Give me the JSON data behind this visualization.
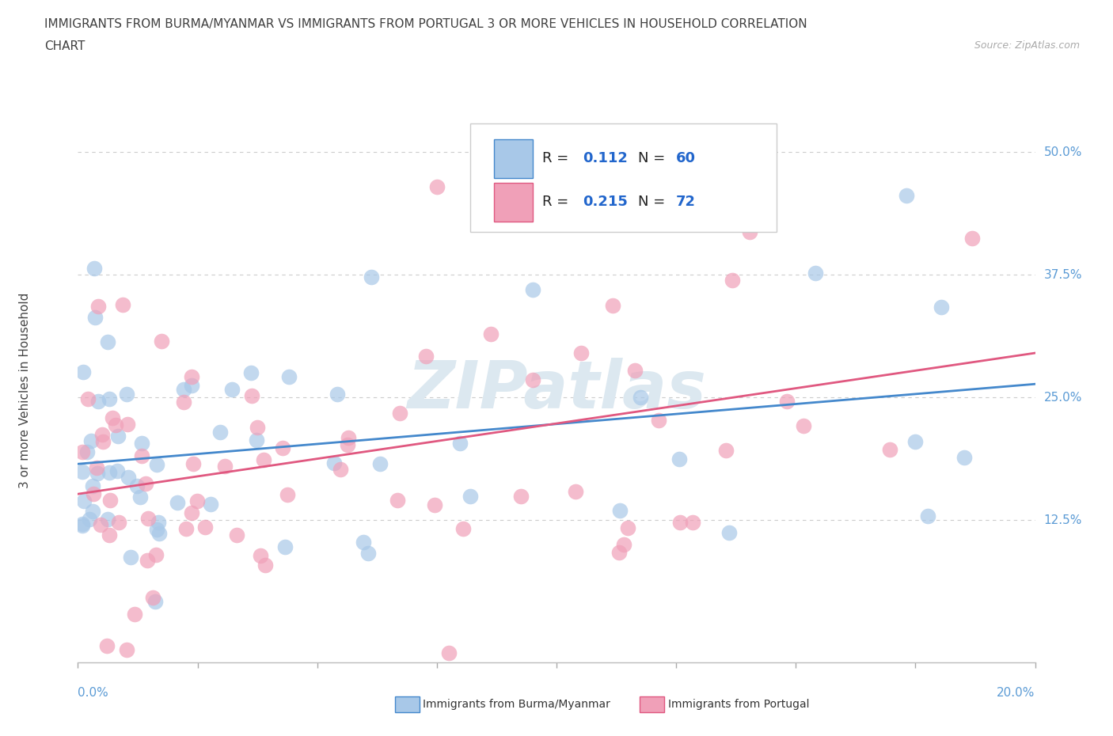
{
  "title_line1": "IMMIGRANTS FROM BURMA/MYANMAR VS IMMIGRANTS FROM PORTUGAL 3 OR MORE VEHICLES IN HOUSEHOLD CORRELATION",
  "title_line2": "CHART",
  "source": "Source: ZipAtlas.com",
  "ylabel": "3 or more Vehicles in Household",
  "yticks": [
    "12.5%",
    "25.0%",
    "37.5%",
    "50.0%"
  ],
  "ytick_vals": [
    0.125,
    0.25,
    0.375,
    0.5
  ],
  "xlim": [
    0.0,
    0.2
  ],
  "ylim": [
    -0.02,
    0.535
  ],
  "color_blue": "#a8c8e8",
  "color_pink": "#f0a0b8",
  "line_blue": "#4488cc",
  "line_pink": "#e05880",
  "R_blue": 0.112,
  "N_blue": 60,
  "R_pink": 0.215,
  "N_pink": 72,
  "legend_label_blue": "Immigrants from Burma/Myanmar",
  "legend_label_pink": "Immigrants from Portugal",
  "legend_text_color": "#000000",
  "legend_value_color": "#2266cc",
  "watermark_color": "#dce8f0",
  "grid_color": "#cccccc",
  "axis_label_color": "#5b9bd5",
  "title_color": "#404040"
}
